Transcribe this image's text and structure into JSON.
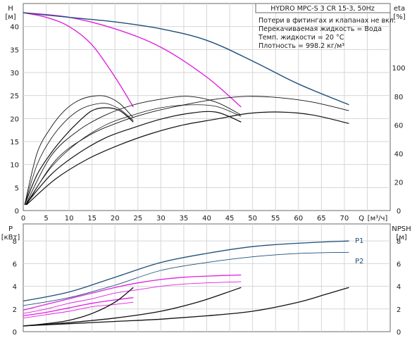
{
  "chart_data": [
    {
      "type": "line",
      "panel": "top",
      "header": "HYDRO MPC-S 3 CR 15-3, 50Hz",
      "notes": [
        "Потери в фитингах и клапанах не вкл.",
        "Перекачиваемая жидкость = Вода",
        "Темп. жидкости = 20 °C",
        "Плотность = 998.2 кг/м³"
      ],
      "y_left": {
        "name": "H",
        "unit": "[м]",
        "ticks": [
          "0",
          "5",
          "10",
          "15",
          "20",
          "25",
          "30",
          "35",
          "40"
        ],
        "ylim": [
          0,
          45
        ]
      },
      "y_right": {
        "name": "eta",
        "unit": "[%]",
        "ticks": [
          "0",
          "20",
          "40",
          "60",
          "80",
          "100"
        ],
        "ylim": [
          0,
          145
        ]
      },
      "x": {
        "name": "Q",
        "unit": "[м³/ч]",
        "ticks": [
          "0",
          "5",
          "10",
          "15",
          "20",
          "25",
          "30",
          "35",
          "40",
          "45",
          "50",
          "55",
          "60",
          "65",
          "70"
        ],
        "xlim": [
          0,
          80
        ]
      },
      "series": [
        {
          "group": "head",
          "color": "#e020e0",
          "width": 1.4,
          "x": [
            0,
            5,
            10,
            15,
            20,
            24
          ],
          "y": [
            43,
            42,
            40,
            36,
            29,
            22.5
          ]
        },
        {
          "group": "head",
          "color": "#e020e0",
          "width": 1.4,
          "x": [
            0,
            10,
            20,
            30,
            40,
            47.5
          ],
          "y": [
            43,
            42,
            39.5,
            35.5,
            29,
            22.5
          ]
        },
        {
          "group": "head",
          "color": "#1d4e7a",
          "width": 1.4,
          "x": [
            0,
            10,
            20,
            30,
            40,
            50,
            60,
            71
          ],
          "y": [
            43,
            42,
            41,
            39.5,
            37,
            32.5,
            27.5,
            23
          ]
        },
        {
          "group": "eta",
          "color": "#111111",
          "width": 0.9,
          "x": [
            0.3,
            3,
            6,
            9,
            12,
            15,
            18,
            21,
            24
          ],
          "y": [
            4,
            40,
            58,
            70,
            77,
            80,
            80,
            75,
            65
          ]
        },
        {
          "group": "eta",
          "color": "#111111",
          "width": 1.2,
          "x": [
            0.3,
            3,
            6,
            9,
            12,
            15,
            18,
            21,
            24
          ],
          "y": [
            4,
            25,
            40,
            52,
            62,
            70,
            72,
            70,
            62
          ]
        },
        {
          "group": "eta",
          "color": "#111111",
          "width": 0.9,
          "x": [
            0.5,
            6,
            12,
            18,
            24,
            30,
            36,
            42,
            47.5
          ],
          "y": [
            4,
            38,
            56,
            67,
            74,
            78,
            80,
            76,
            67
          ]
        },
        {
          "group": "eta",
          "color": "#111111",
          "width": 1.2,
          "x": [
            0.5,
            6,
            12,
            18,
            24,
            30,
            36,
            42,
            47.5
          ],
          "y": [
            4,
            25,
            40,
            51,
            58,
            64,
            68,
            69,
            62
          ]
        },
        {
          "group": "eta",
          "color": "#111111",
          "width": 0.9,
          "x": [
            0.7,
            7,
            14,
            21,
            28,
            35,
            42,
            49,
            56,
            63,
            71
          ],
          "y": [
            4,
            35,
            52,
            62,
            69,
            74,
            78,
            80,
            79,
            76,
            70
          ]
        },
        {
          "group": "eta",
          "color": "#111111",
          "width": 1.2,
          "x": [
            0.7,
            7,
            14,
            21,
            28,
            35,
            42,
            49,
            56,
            63,
            71
          ],
          "y": [
            4,
            22,
            36,
            46,
            54,
            60,
            64,
            68,
            69,
            67,
            61
          ]
        },
        {
          "group": "eta",
          "color": "#111111",
          "width": 0.8,
          "x": [
            0.3,
            3,
            6,
            9,
            12,
            15,
            18,
            21,
            24
          ],
          "y": [
            4,
            32,
            50,
            62,
            70,
            74,
            75,
            71,
            63
          ]
        },
        {
          "group": "eta",
          "color": "#111111",
          "width": 0.8,
          "x": [
            0.5,
            6,
            12,
            18,
            24,
            30,
            36,
            42,
            47.5
          ],
          "y": [
            4,
            30,
            48,
            60,
            67,
            72,
            74,
            73,
            66
          ]
        }
      ]
    },
    {
      "type": "line",
      "panel": "bottom",
      "y_left": {
        "name": "P",
        "unit": "[кВт]",
        "ticks": [
          "0",
          "2",
          "4",
          "6",
          "8"
        ],
        "ylim": [
          0,
          9.5
        ]
      },
      "y_right": {
        "name": "NPSH",
        "unit": "[м]",
        "ticks": [
          "0",
          "2",
          "4",
          "6",
          "8"
        ],
        "ylim": [
          0,
          9.5
        ]
      },
      "x": {
        "xlim": [
          0,
          80
        ]
      },
      "series": [
        {
          "name": "P1",
          "color": "#1d4e7a",
          "width": 1.3,
          "x": [
            0,
            10,
            20,
            30,
            40,
            50,
            60,
            71
          ],
          "y": [
            2.7,
            3.5,
            4.8,
            6.1,
            6.9,
            7.5,
            7.8,
            8.0
          ]
        },
        {
          "name": "P2",
          "color": "#1d4e7a",
          "width": 0.9,
          "x": [
            0,
            10,
            20,
            30,
            40,
            50,
            60,
            71
          ],
          "y": [
            2.3,
            3.0,
            4.1,
            5.4,
            6.1,
            6.6,
            6.9,
            7.0
          ]
        },
        {
          "color": "#e020e0",
          "width": 1.3,
          "x": [
            0,
            5,
            10,
            15,
            20,
            24
          ],
          "y": [
            1.4,
            1.7,
            2.1,
            2.5,
            2.8,
            3.0
          ]
        },
        {
          "color": "#e020e0",
          "width": 0.9,
          "x": [
            0,
            5,
            10,
            15,
            20,
            24
          ],
          "y": [
            1.2,
            1.5,
            1.8,
            2.2,
            2.4,
            2.6
          ]
        },
        {
          "color": "#e020e0",
          "width": 1.3,
          "x": [
            0,
            5,
            10,
            15,
            20,
            25,
            30,
            35,
            40,
            47.5
          ],
          "y": [
            1.9,
            2.4,
            2.9,
            3.4,
            3.9,
            4.3,
            4.6,
            4.8,
            4.9,
            5.0
          ]
        },
        {
          "color": "#e020e0",
          "width": 0.9,
          "x": [
            0,
            5,
            10,
            15,
            20,
            25,
            30,
            35,
            40,
            47.5
          ],
          "y": [
            1.6,
            2.0,
            2.5,
            2.9,
            3.4,
            3.7,
            4.0,
            4.2,
            4.3,
            4.4
          ]
        },
        {
          "color": "#111111",
          "width": 1.3,
          "x": [
            0,
            5,
            10,
            15,
            20,
            24
          ],
          "y": [
            0.5,
            0.7,
            1.0,
            1.6,
            2.6,
            3.9
          ]
        },
        {
          "color": "#111111",
          "width": 1.3,
          "x": [
            0,
            10,
            20,
            30,
            38,
            44,
            47.5
          ],
          "y": [
            0.5,
            0.8,
            1.2,
            1.8,
            2.6,
            3.4,
            3.9
          ]
        },
        {
          "color": "#111111",
          "width": 1.3,
          "x": [
            0,
            10,
            20,
            30,
            40,
            50,
            60,
            66,
            71
          ],
          "y": [
            0.5,
            0.7,
            0.9,
            1.1,
            1.4,
            1.8,
            2.6,
            3.3,
            3.9
          ]
        }
      ]
    }
  ]
}
